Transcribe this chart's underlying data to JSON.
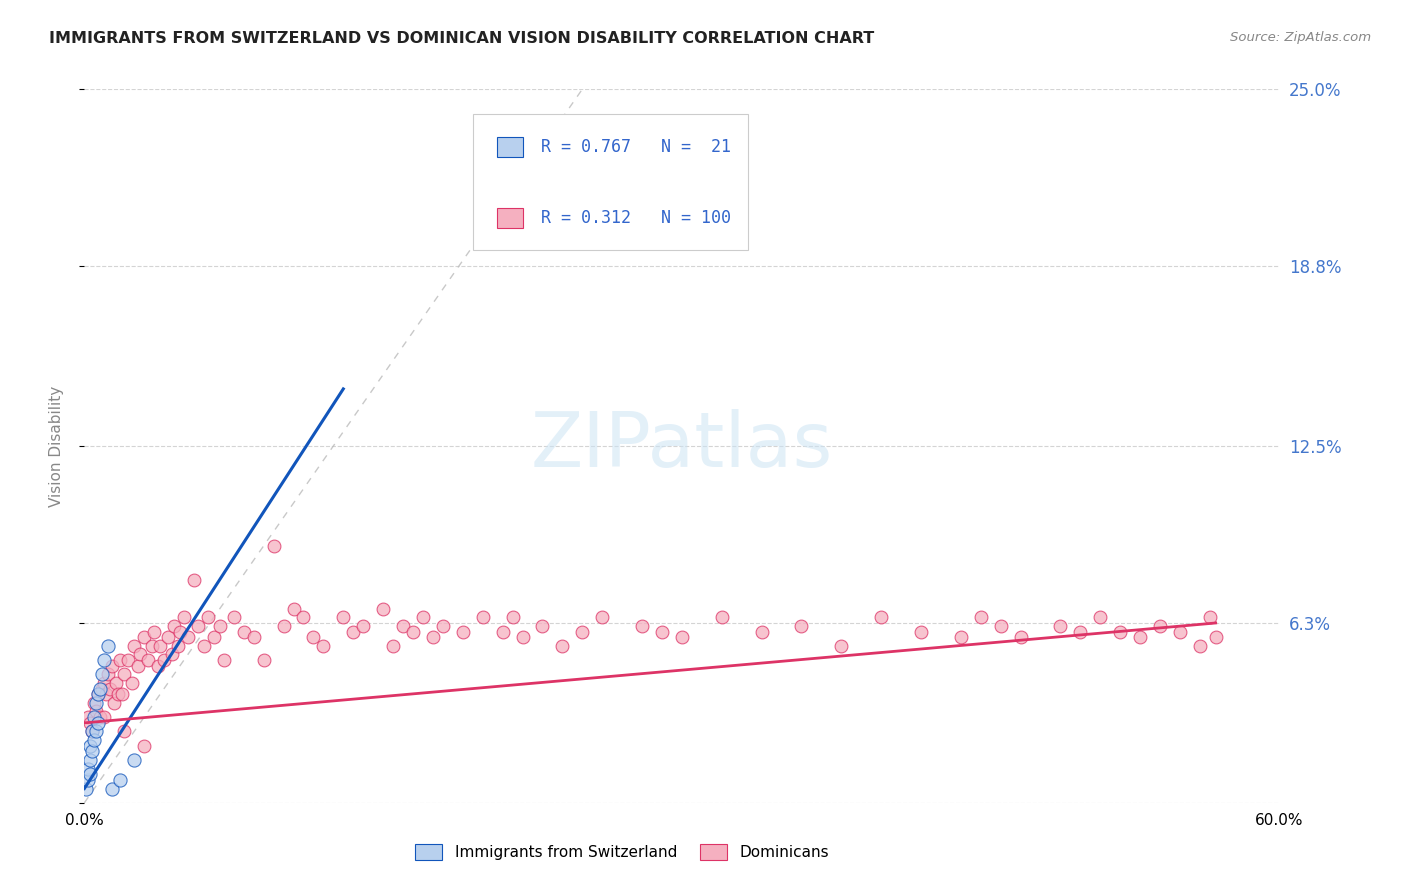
{
  "title": "IMMIGRANTS FROM SWITZERLAND VS DOMINICAN VISION DISABILITY CORRELATION CHART",
  "source": "Source: ZipAtlas.com",
  "ylabel": "Vision Disability",
  "xlim": [
    0.0,
    0.6
  ],
  "ylim": [
    0.0,
    0.25
  ],
  "grid_color": "#d0d0d0",
  "background_color": "#ffffff",
  "swiss_color": "#b8d0ee",
  "dominican_color": "#f5b0c0",
  "swiss_line_color": "#1155bb",
  "dominican_line_color": "#dd3366",
  "ref_line_color": "#bbbbbb",
  "right_tick_color": "#4477cc",
  "swiss_R": 0.767,
  "swiss_N": 21,
  "dominican_R": 0.312,
  "dominican_N": 100,
  "legend_text_color": "#3366cc",
  "swiss_scatter_x": [
    0.001,
    0.002,
    0.002,
    0.003,
    0.003,
    0.003,
    0.004,
    0.004,
    0.005,
    0.005,
    0.006,
    0.006,
    0.007,
    0.007,
    0.008,
    0.009,
    0.01,
    0.012,
    0.014,
    0.018,
    0.025
  ],
  "swiss_scatter_y": [
    0.005,
    0.008,
    0.012,
    0.01,
    0.015,
    0.02,
    0.018,
    0.025,
    0.022,
    0.03,
    0.025,
    0.035,
    0.028,
    0.038,
    0.04,
    0.045,
    0.05,
    0.055,
    0.005,
    0.008,
    0.015
  ],
  "dominican_scatter_x": [
    0.002,
    0.003,
    0.004,
    0.005,
    0.006,
    0.007,
    0.008,
    0.009,
    0.01,
    0.011,
    0.012,
    0.013,
    0.014,
    0.015,
    0.016,
    0.017,
    0.018,
    0.019,
    0.02,
    0.022,
    0.024,
    0.025,
    0.027,
    0.028,
    0.03,
    0.032,
    0.034,
    0.035,
    0.037,
    0.038,
    0.04,
    0.042,
    0.044,
    0.045,
    0.047,
    0.048,
    0.05,
    0.052,
    0.055,
    0.057,
    0.06,
    0.062,
    0.065,
    0.068,
    0.07,
    0.075,
    0.08,
    0.085,
    0.09,
    0.095,
    0.1,
    0.105,
    0.11,
    0.115,
    0.12,
    0.13,
    0.135,
    0.14,
    0.15,
    0.155,
    0.16,
    0.165,
    0.17,
    0.175,
    0.18,
    0.19,
    0.2,
    0.21,
    0.215,
    0.22,
    0.23,
    0.24,
    0.25,
    0.26,
    0.28,
    0.29,
    0.3,
    0.32,
    0.34,
    0.36,
    0.38,
    0.4,
    0.42,
    0.44,
    0.45,
    0.46,
    0.47,
    0.49,
    0.5,
    0.51,
    0.52,
    0.53,
    0.54,
    0.55,
    0.56,
    0.565,
    0.568,
    0.01,
    0.02,
    0.03
  ],
  "dominican_scatter_y": [
    0.03,
    0.028,
    0.025,
    0.035,
    0.032,
    0.038,
    0.03,
    0.04,
    0.042,
    0.038,
    0.045,
    0.04,
    0.048,
    0.035,
    0.042,
    0.038,
    0.05,
    0.038,
    0.045,
    0.05,
    0.042,
    0.055,
    0.048,
    0.052,
    0.058,
    0.05,
    0.055,
    0.06,
    0.048,
    0.055,
    0.05,
    0.058,
    0.052,
    0.062,
    0.055,
    0.06,
    0.065,
    0.058,
    0.078,
    0.062,
    0.055,
    0.065,
    0.058,
    0.062,
    0.05,
    0.065,
    0.06,
    0.058,
    0.05,
    0.09,
    0.062,
    0.068,
    0.065,
    0.058,
    0.055,
    0.065,
    0.06,
    0.062,
    0.068,
    0.055,
    0.062,
    0.06,
    0.065,
    0.058,
    0.062,
    0.06,
    0.065,
    0.06,
    0.065,
    0.058,
    0.062,
    0.055,
    0.06,
    0.065,
    0.062,
    0.06,
    0.058,
    0.065,
    0.06,
    0.062,
    0.055,
    0.065,
    0.06,
    0.058,
    0.065,
    0.062,
    0.058,
    0.062,
    0.06,
    0.065,
    0.06,
    0.058,
    0.062,
    0.06,
    0.055,
    0.065,
    0.058,
    0.03,
    0.025,
    0.02
  ],
  "swiss_trend_x": [
    0.0,
    0.13
  ],
  "swiss_trend_y": [
    0.005,
    0.145
  ],
  "dominican_trend_x": [
    0.0,
    0.568
  ],
  "dominican_trend_y": [
    0.028,
    0.063
  ],
  "ref_line_x": [
    0.0,
    0.25
  ],
  "ref_line_y": [
    0.0,
    0.25
  ]
}
